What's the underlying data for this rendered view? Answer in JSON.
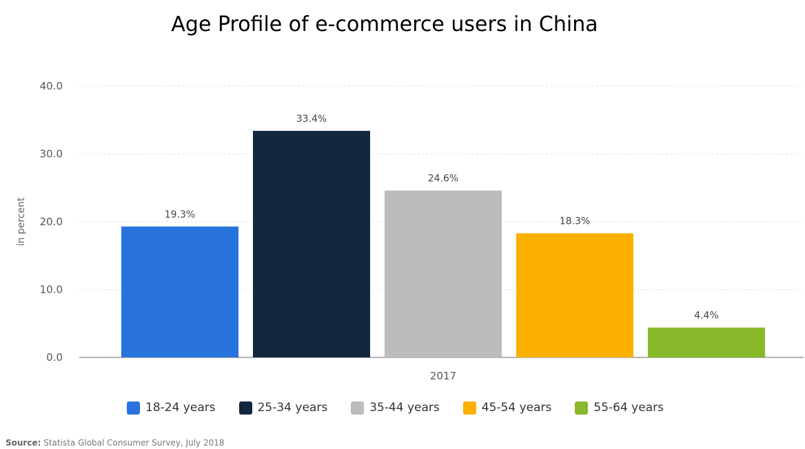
{
  "chart_data": {
    "type": "bar",
    "title": "Age Profile of e-commerce users in China",
    "xlabel": "",
    "ylabel": "in percent",
    "categories": [
      "2017"
    ],
    "series": [
      {
        "name": "18-24 years",
        "values": [
          19.3
        ],
        "label": "19.3%",
        "color": "#2874dc"
      },
      {
        "name": "25-34 years",
        "values": [
          33.4
        ],
        "label": "33.4%",
        "color": "#13283f"
      },
      {
        "name": "35-44 years",
        "values": [
          24.6
        ],
        "label": "24.6%",
        "color": "#bcbcbc"
      },
      {
        "name": "45-54 years",
        "values": [
          18.3
        ],
        "label": "18.3%",
        "color": "#fbb000"
      },
      {
        "name": "55-64 years",
        "values": [
          4.4
        ],
        "label": "4.4%",
        "color": "#87b92a"
      }
    ],
    "yticks": [
      "0.0",
      "10.0",
      "20.0",
      "30.0",
      "40.0"
    ],
    "ylim": [
      0,
      40
    ],
    "grid": true,
    "legend_position": "bottom"
  },
  "source": {
    "label": "Source:",
    "text": "Statista Global Consumer Survey, July 2018"
  }
}
